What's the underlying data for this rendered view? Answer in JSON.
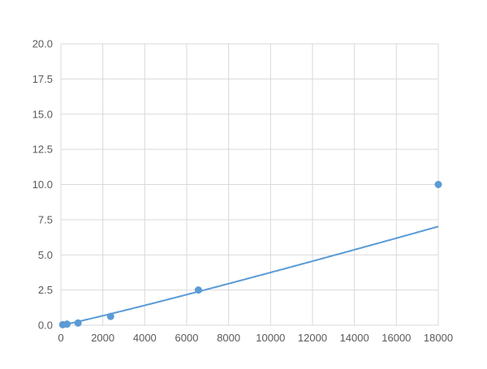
{
  "chart_data": {
    "type": "scatter",
    "title": "",
    "xlabel": "",
    "ylabel": "",
    "xlim": [
      0,
      18000
    ],
    "ylim": [
      0,
      20
    ],
    "xticks": [
      0,
      2000,
      4000,
      6000,
      8000,
      10000,
      12000,
      14000,
      16000,
      18000
    ],
    "yticks": [
      "0.0",
      "2.5",
      "5.0",
      "7.5",
      "10.0",
      "12.5",
      "15.0",
      "17.5",
      "20.0"
    ],
    "grid": true,
    "legend": "none",
    "color": "#5b9bd5",
    "series": [
      {
        "x": [
          90,
          290,
          820,
          2370,
          6560,
          18000
        ],
        "y": [
          0.039,
          0.078,
          0.156,
          0.625,
          2.5,
          10
        ],
        "trendline": "smooth curve"
      }
    ]
  }
}
